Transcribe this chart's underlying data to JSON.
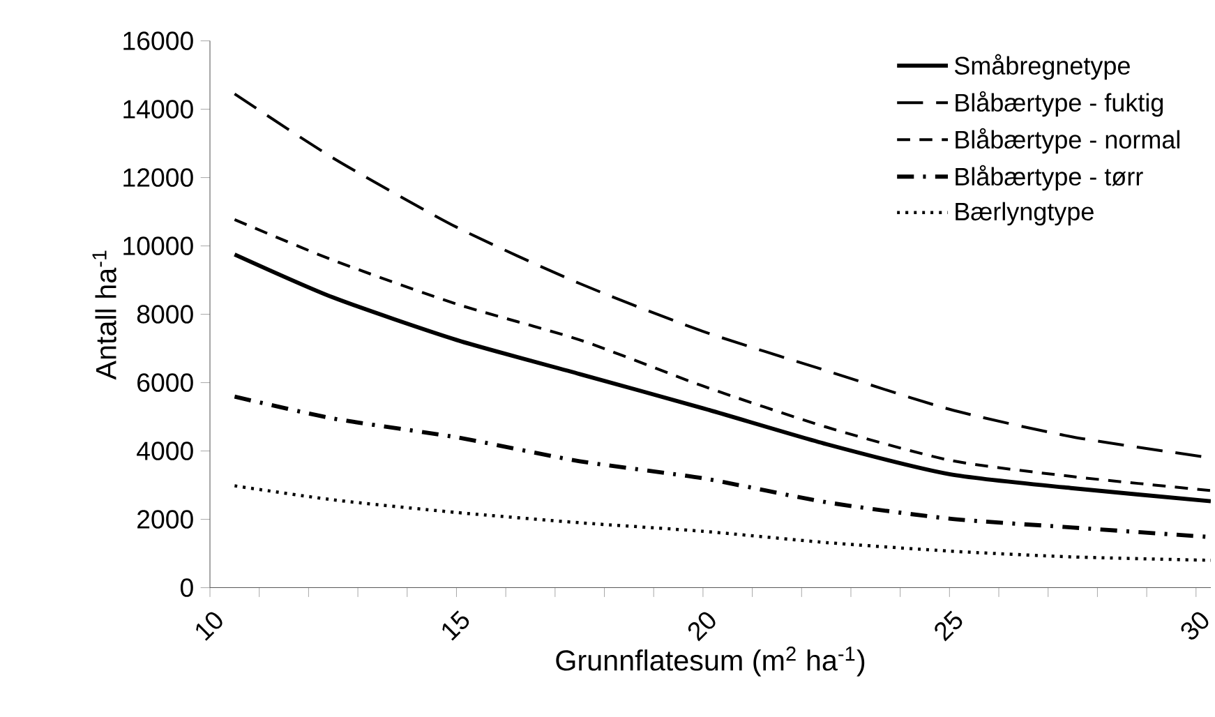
{
  "chart_data": {
    "type": "line",
    "xlabel": "Grunnflatesum (m$^{2}$ ha$^{-1}$)",
    "ylabel": "Antall ha$^{-1}$",
    "x": [
      10.5,
      12.5,
      15,
      17.5,
      20,
      22.5,
      25,
      27.5,
      30.3
    ],
    "series": [
      {
        "name": "Småbregnetype",
        "color": "#000000",
        "line_style": "solid",
        "values": [
          9750,
          8490,
          7250,
          6250,
          5250,
          4200,
          3320,
          2910,
          2530
        ]
      },
      {
        "name": "Blåbærtype - fuktig",
        "color": "#000000",
        "line_style": "long dashed",
        "values": [
          14450,
          12570,
          10550,
          8900,
          7500,
          6350,
          5220,
          4410,
          3800
        ]
      },
      {
        "name": "Blåbærtype - normal",
        "color": "#000000",
        "line_style": "dashed",
        "values": [
          10770,
          9580,
          8300,
          7250,
          5900,
          4700,
          3730,
          3250,
          2840
        ]
      },
      {
        "name": "Blåbærtype - tørr",
        "color": "#000000",
        "line_style": "dash dot",
        "values": [
          5590,
          4950,
          4400,
          3700,
          3200,
          2500,
          2020,
          1760,
          1480
        ]
      },
      {
        "name": "Bærlyngtype",
        "color": "#000000",
        "line_style": "dotted",
        "values": [
          2980,
          2570,
          2200,
          1900,
          1650,
          1320,
          1070,
          900,
          800
        ]
      }
    ],
    "xlim": [
      10,
      30.3
    ],
    "xticks": [
      10,
      {
        "value": 11,
        "label": null
      },
      {
        "value": 12,
        "label": null
      },
      {
        "value": 13,
        "label": null
      },
      {
        "value": 14,
        "label": null
      },
      15,
      {
        "value": 16,
        "label": null
      },
      {
        "value": 17,
        "label": null
      },
      {
        "value": 18,
        "label": null
      },
      {
        "value": 19,
        "label": null
      },
      20,
      {
        "value": 21,
        "label": null
      },
      {
        "value": 22,
        "label": null
      },
      {
        "value": 23,
        "label": null
      },
      {
        "value": 24,
        "label": null
      },
      25,
      {
        "value": 26,
        "label": null
      },
      {
        "value": 27,
        "label": null
      },
      {
        "value": 28,
        "label": null
      },
      {
        "value": 29,
        "label": null
      },
      30
    ],
    "ylim": [
      0,
      16000
    ],
    "yticks": [
      0,
      2000,
      4000,
      6000,
      8000,
      10000,
      12000,
      14000,
      16000
    ],
    "grid": false,
    "legend": "top right",
    "marker": "none"
  }
}
